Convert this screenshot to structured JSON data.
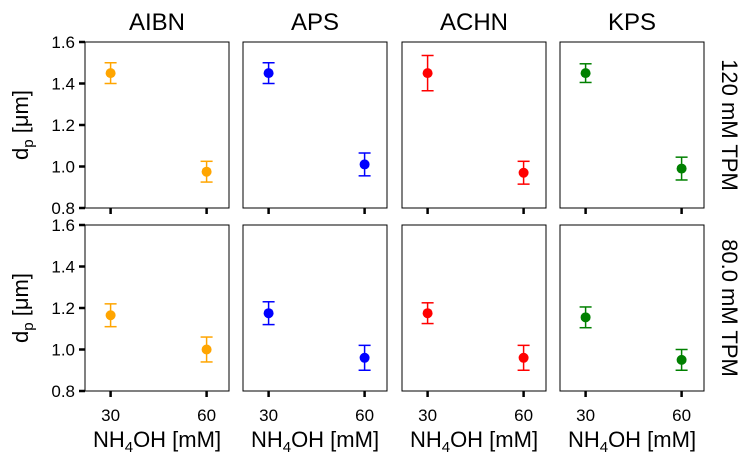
{
  "chart_data": {
    "type": "scatter",
    "layout": "2x4 grid of error-bar panels",
    "columns": [
      "AIBN",
      "APS",
      "ACHN",
      "KPS"
    ],
    "rows": [
      "120 mM TPM",
      "80.0 mM TPM"
    ],
    "colors": {
      "AIBN": "#ffa500",
      "APS": "#0000ff",
      "ACHN": "#ff0000",
      "KPS": "#008000"
    },
    "ylabel_main": "d",
    "ylabel_sub": "p",
    "ylabel_unit": " [μm]",
    "xlabel_pre": "NH",
    "xlabel_sub": "4",
    "xlabel_post": "OH [mM]",
    "x_values": [
      30,
      60
    ],
    "xticks": [
      "30",
      "60"
    ],
    "yticks": [
      "0.8",
      "1.0",
      "1.2",
      "1.4",
      "1.6"
    ],
    "ylim": [
      0.8,
      1.6
    ],
    "xlim": [
      22,
      67
    ],
    "grid": false,
    "panels": [
      {
        "row": 0,
        "col": 0,
        "points": [
          {
            "x": 30,
            "y": 1.45,
            "err": 0.05
          },
          {
            "x": 60,
            "y": 0.975,
            "err": 0.05
          }
        ]
      },
      {
        "row": 0,
        "col": 1,
        "points": [
          {
            "x": 30,
            "y": 1.45,
            "err": 0.05
          },
          {
            "x": 60,
            "y": 1.01,
            "err": 0.055
          }
        ]
      },
      {
        "row": 0,
        "col": 2,
        "points": [
          {
            "x": 30,
            "y": 1.45,
            "err": 0.085
          },
          {
            "x": 60,
            "y": 0.97,
            "err": 0.055
          }
        ]
      },
      {
        "row": 0,
        "col": 3,
        "points": [
          {
            "x": 30,
            "y": 1.45,
            "err": 0.045
          },
          {
            "x": 60,
            "y": 0.99,
            "err": 0.055
          }
        ]
      },
      {
        "row": 1,
        "col": 0,
        "points": [
          {
            "x": 30,
            "y": 1.165,
            "err": 0.055
          },
          {
            "x": 60,
            "y": 1.0,
            "err": 0.06
          }
        ]
      },
      {
        "row": 1,
        "col": 1,
        "points": [
          {
            "x": 30,
            "y": 1.175,
            "err": 0.055
          },
          {
            "x": 60,
            "y": 0.96,
            "err": 0.06
          }
        ]
      },
      {
        "row": 1,
        "col": 2,
        "points": [
          {
            "x": 30,
            "y": 1.175,
            "err": 0.05
          },
          {
            "x": 60,
            "y": 0.96,
            "err": 0.06
          }
        ]
      },
      {
        "row": 1,
        "col": 3,
        "points": [
          {
            "x": 30,
            "y": 1.155,
            "err": 0.05
          },
          {
            "x": 60,
            "y": 0.95,
            "err": 0.05
          }
        ]
      }
    ]
  }
}
